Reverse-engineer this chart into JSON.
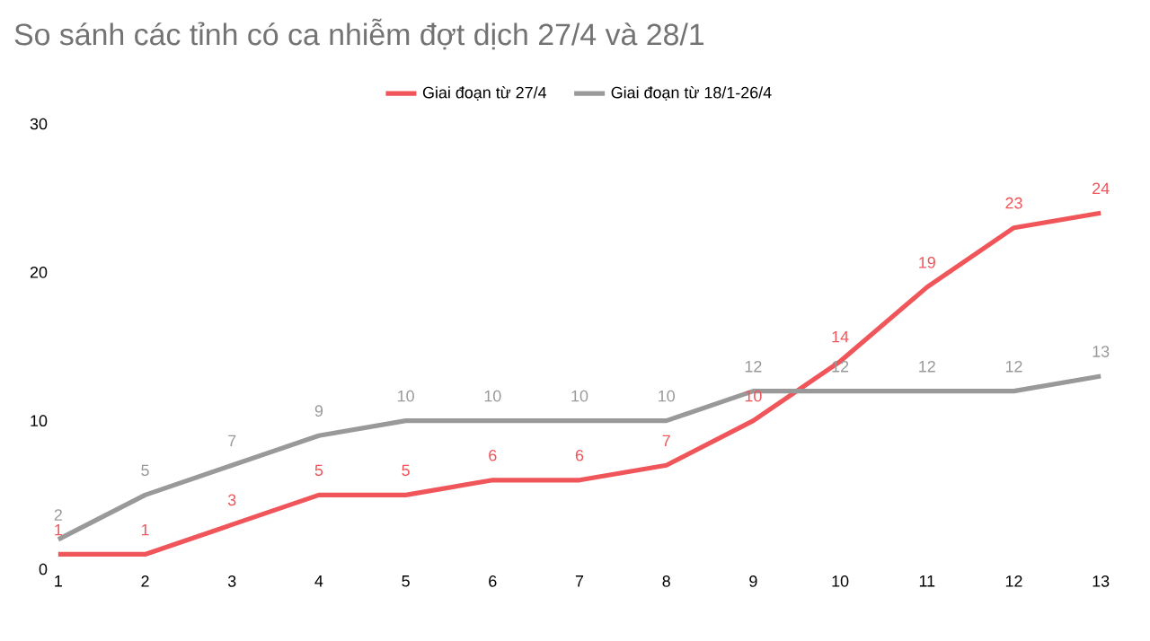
{
  "chart_data": {
    "type": "line",
    "title": "So sánh các tỉnh có ca nhiễm đợt dịch 27/4 và 28/1",
    "categories": [
      "1",
      "2",
      "3",
      "4",
      "5",
      "6",
      "7",
      "8",
      "9",
      "10",
      "11",
      "12",
      "13"
    ],
    "series": [
      {
        "name": "Giai đoạn từ 27/4",
        "color": "#f0555a",
        "values": [
          1,
          1,
          3,
          5,
          5,
          6,
          6,
          7,
          10,
          14,
          19,
          23,
          24
        ]
      },
      {
        "name": "Giai đoạn từ 18/1-26/4",
        "color": "#999999",
        "values": [
          2,
          5,
          7,
          9,
          10,
          10,
          10,
          10,
          12,
          12,
          12,
          12,
          13
        ]
      }
    ],
    "ylim": [
      0,
      30
    ],
    "yticks": [
      0,
      10,
      20,
      30
    ],
    "grid": false,
    "legend": "top",
    "data_labels": true
  }
}
